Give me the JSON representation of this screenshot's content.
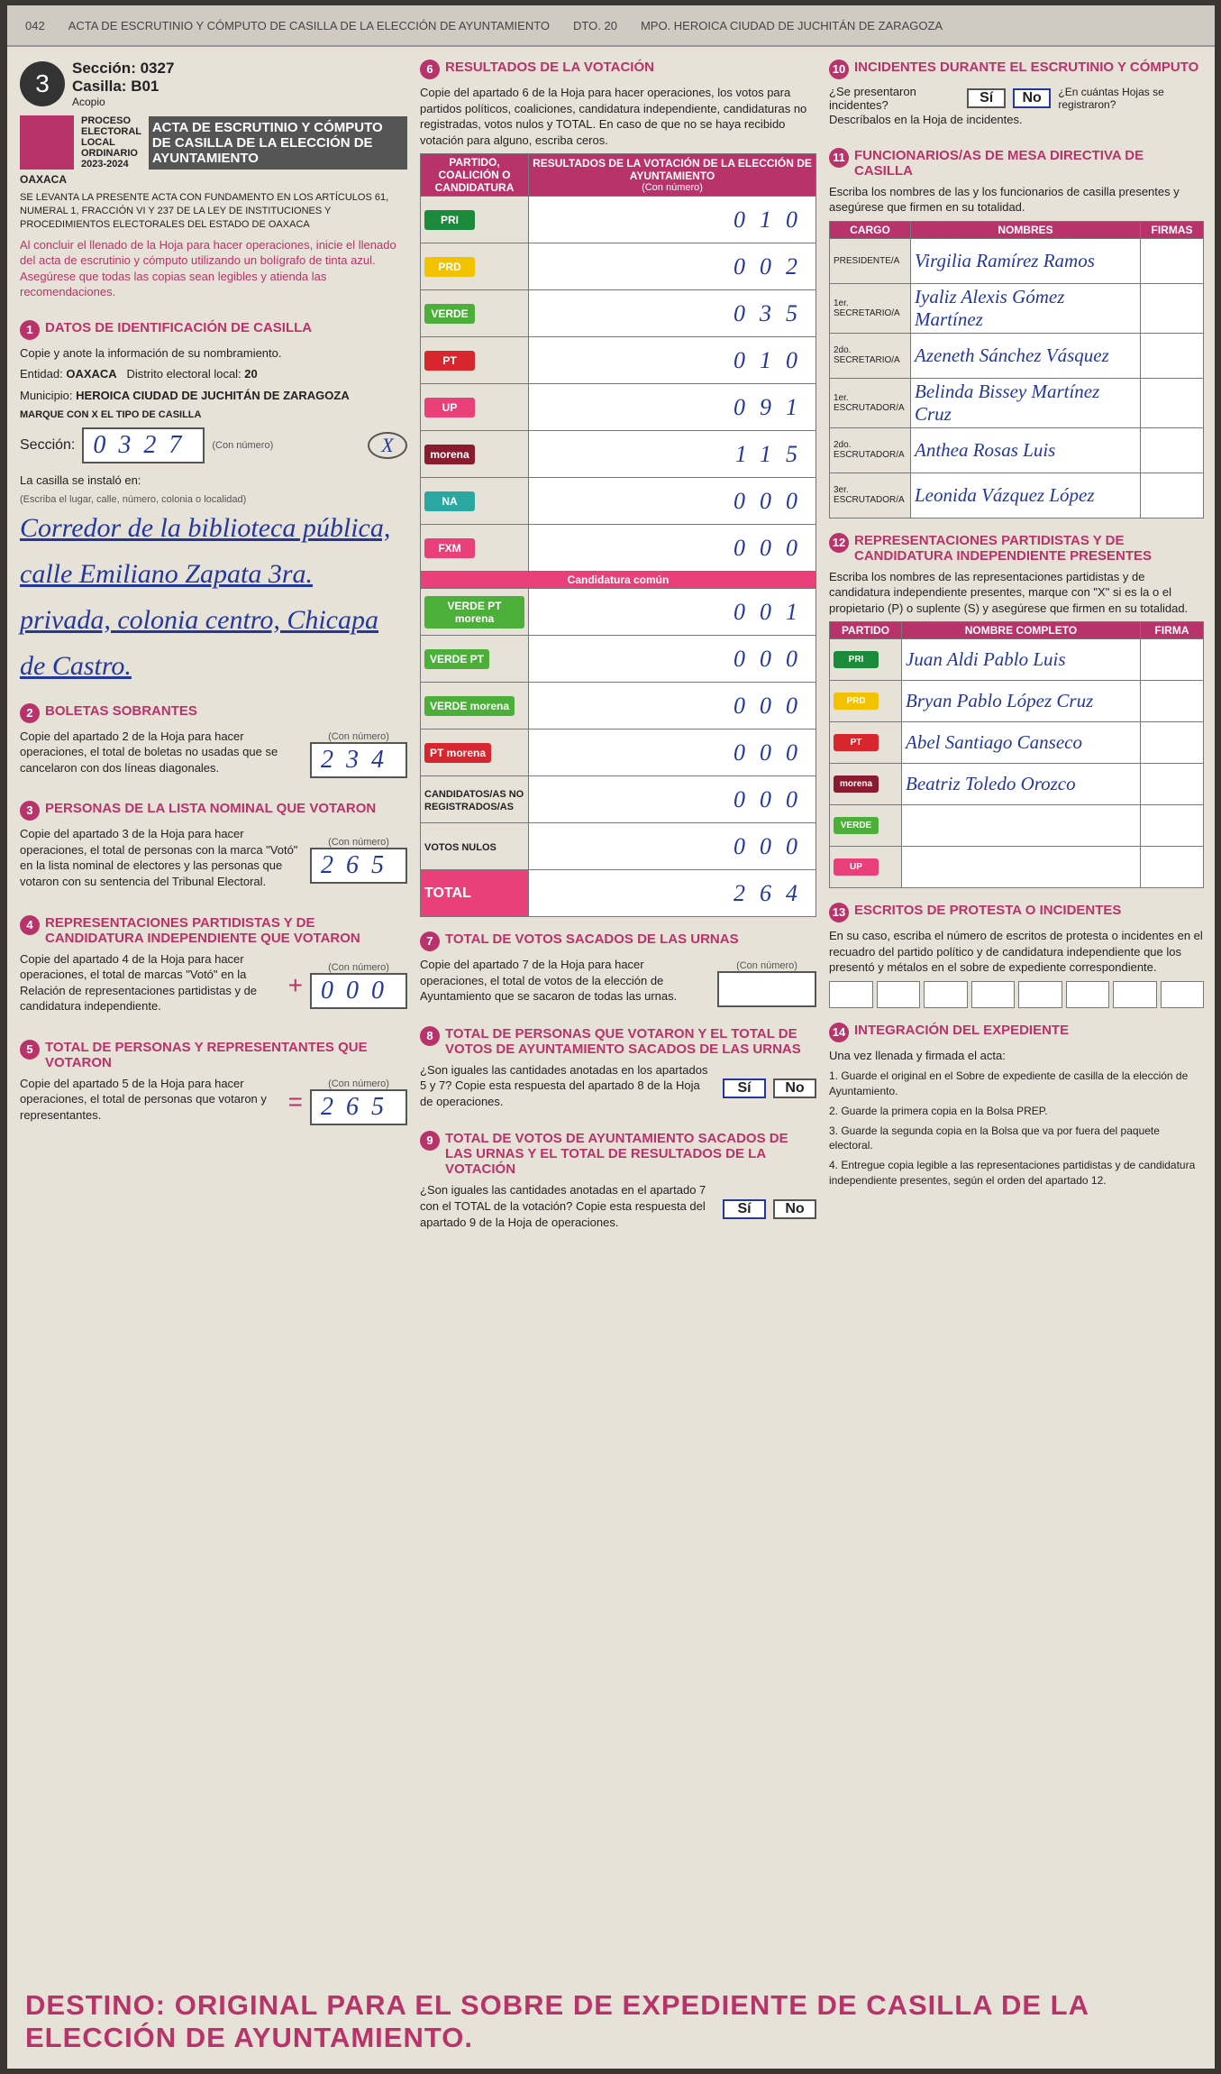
{
  "top_strip": {
    "code": "042",
    "acta": "ACTA DE ESCRUTINIO Y CÓMPUTO DE CASILLA DE LA ELECCIÓN DE AYUNTAMIENTO",
    "distrito": "DTO. 20",
    "municipio": "MPO. HEROICA CIUDAD DE JUCHITÁN DE ZARAGOZA"
  },
  "header": {
    "number": "3",
    "seccion": "Sección: 0327",
    "casilla": "Casilla: B01",
    "acopio": "Acopio",
    "proceso": "PROCESO ELECTORAL LOCAL ORDINARIO 2023-2024",
    "title": "ACTA DE ESCRUTINIO Y CÓMPUTO DE CASILLA DE LA ELECCIÓN DE AYUNTAMIENTO",
    "estado": "OAXACA",
    "fundamento": "SE LEVANTA LA PRESENTE ACTA CON FUNDAMENTO EN LOS ARTÍCULOS 61, NUMERAL 1, FRACCIÓN VI Y 237 DE LA LEY DE INSTITUCIONES Y PROCEDIMIENTOS ELECTORALES DEL ESTADO DE OAXACA",
    "instruccion": "Al concluir el llenado de la Hoja para hacer operaciones, inicie el llenado del acta de escrutinio y cómputo utilizando un bolígrafo de tinta azul. Asegúrese que todas las copias sean legibles y atienda las recomendaciones."
  },
  "s1": {
    "num": "1",
    "title": "DATOS DE IDENTIFICACIÓN DE CASILLA",
    "copy": "Copie y anote la información de su nombramiento.",
    "entidad_label": "Entidad:",
    "entidad": "OAXACA",
    "distrito_label": "Distrito electoral local:",
    "distrito": "20",
    "municipio_label": "Municipio:",
    "municipio": "HEROICA CIUDAD DE JUCHITÁN DE ZARAGOZA",
    "tipo": "MARQUE CON X EL TIPO DE CASILLA",
    "seccion_label": "Sección:",
    "seccion": "0327",
    "con_numero": "(Con número)",
    "instalo_label": "La casilla se instaló en:",
    "instalo_hint": "(Escriba el lugar, calle, número, colonia o localidad)",
    "instalo": "Corredor de la biblioteca pública, calle Emiliano Zapata 3ra. privada, colonia centro, Chicapa de Castro."
  },
  "s2": {
    "num": "2",
    "title": "BOLETAS SOBRANTES",
    "text": "Copie del apartado 2 de la Hoja para hacer operaciones, el total de boletas no usadas que se cancelaron con dos líneas diagonales.",
    "hint": "(Con número)",
    "value": "234"
  },
  "s3": {
    "num": "3",
    "title": "PERSONAS DE LA LISTA NOMINAL QUE VOTARON",
    "text": "Copie del apartado 3 de la Hoja para hacer operaciones, el total de personas con la marca \"Votó\" en la lista nominal de electores y las personas que votaron con su sentencia del Tribunal Electoral.",
    "hint": "(Con número)",
    "value": "265"
  },
  "s4": {
    "num": "4",
    "title": "REPRESENTACIONES PARTIDISTAS Y DE CANDIDATURA INDEPENDIENTE QUE VOTARON",
    "text": "Copie del apartado 4 de la Hoja para hacer operaciones, el total de marcas \"Votó\" en la Relación de representaciones partidistas y de candidatura independiente.",
    "sign": "+",
    "hint": "(Con número)",
    "value": "000"
  },
  "s5": {
    "num": "5",
    "title": "TOTAL DE PERSONAS Y REPRESENTANTES QUE VOTARON",
    "text": "Copie del apartado 5 de la Hoja para hacer operaciones, el total de personas que votaron y representantes.",
    "sign": "=",
    "hint": "(Con número)",
    "value": "265"
  },
  "s6": {
    "num": "6",
    "title": "RESULTADOS DE LA VOTACIÓN",
    "text": "Copie del apartado 6 de la Hoja para hacer operaciones, los votos para partidos políticos, coaliciones, candidatura independiente, candidaturas no registradas, votos nulos y TOTAL. En caso de que no se haya recibido votación para alguno, escriba ceros.",
    "col_party": "PARTIDO, COALICIÓN O CANDIDATURA",
    "col_results": "RESULTADOS DE LA VOTACIÓN DE LA ELECCIÓN DE AYUNTAMIENTO",
    "con_numero": "(Con número)",
    "rows": [
      {
        "logo": "PRI",
        "color": "#1b8a3a",
        "value": "010"
      },
      {
        "logo": "PRD",
        "color": "#f2c200",
        "value": "002"
      },
      {
        "logo": "VERDE",
        "color": "#4caf3a",
        "value": "035"
      },
      {
        "logo": "PT",
        "color": "#d7262e",
        "value": "010"
      },
      {
        "logo": "UP",
        "color": "#e9407a",
        "value": "091"
      },
      {
        "logo": "morena",
        "color": "#8a1b2e",
        "value": "115"
      },
      {
        "logo": "NA",
        "color": "#2aa7a0",
        "value": "000"
      },
      {
        "logo": "FXM",
        "color": "#e9407a",
        "value": "000"
      }
    ],
    "comun": "Candidatura común",
    "comun_rows": [
      {
        "logo": "VERDE PT morena",
        "color": "#4caf3a",
        "value": "001"
      },
      {
        "logo": "VERDE PT",
        "color": "#4caf3a",
        "value": "000"
      },
      {
        "logo": "VERDE morena",
        "color": "#4caf3a",
        "value": "000"
      },
      {
        "logo": "PT morena",
        "color": "#d7262e",
        "value": "000"
      }
    ],
    "no_registrados": "CANDIDATOS/AS NO REGISTRADOS/AS",
    "no_registrados_value": "000",
    "nulos": "VOTOS NULOS",
    "nulos_value": "000",
    "total_label": "TOTAL",
    "total": "264"
  },
  "s7": {
    "num": "7",
    "title": "TOTAL DE VOTOS SACADOS DE LAS URNAS",
    "text": "Copie del apartado 7 de la Hoja para hacer operaciones, el total de votos de la elección de Ayuntamiento que se sacaron de todas las urnas.",
    "hint": "(Con número)"
  },
  "s8": {
    "num": "8",
    "title": "TOTAL DE PERSONAS QUE VOTARON Y EL TOTAL DE VOTOS DE AYUNTAMIENTO SACADOS DE LAS URNAS",
    "text": "¿Son iguales las cantidades anotadas en los apartados 5 y 7? Copie esta respuesta del apartado 8 de la Hoja de operaciones.",
    "si": "Sí",
    "no": "No"
  },
  "s9": {
    "num": "9",
    "title": "TOTAL DE VOTOS DE AYUNTAMIENTO SACADOS DE LAS URNAS Y EL TOTAL DE RESULTADOS DE LA VOTACIÓN",
    "text": "¿Son iguales las cantidades anotadas en el apartado 7 con el TOTAL de la votación? Copie esta respuesta del apartado 9 de la Hoja de operaciones.",
    "si": "Sí",
    "no": "No"
  },
  "s10": {
    "num": "10",
    "title": "INCIDENTES DURANTE EL ESCRUTINIO Y CÓMPUTO",
    "q1": "¿Se presentaron incidentes?",
    "si": "Sí",
    "no": "No",
    "q2": "¿En cuántas Hojas se registraron?",
    "desc": "Descríbalos en la Hoja de incidentes."
  },
  "s11": {
    "num": "11",
    "title": "FUNCIONARIOS/AS DE MESA DIRECTIVA DE CASILLA",
    "text": "Escriba los nombres de las y los funcionarios de casilla presentes y asegúrese que firmen en su totalidad.",
    "col_cargo": "CARGO",
    "col_nombres": "NOMBRES",
    "col_firmas": "FIRMAS",
    "rows": [
      {
        "cargo": "PRESIDENTE/A",
        "nombre": "Virgilia Ramírez Ramos"
      },
      {
        "cargo": "1er. SECRETARIO/A",
        "nombre": "Iyaliz Alexis Gómez Martínez"
      },
      {
        "cargo": "2do. SECRETARIO/A",
        "nombre": "Azeneth Sánchez Vásquez"
      },
      {
        "cargo": "1er. ESCRUTADOR/A",
        "nombre": "Belinda Bissey Martínez Cruz"
      },
      {
        "cargo": "2do. ESCRUTADOR/A",
        "nombre": "Anthea Rosas Luis"
      },
      {
        "cargo": "3er. ESCRUTADOR/A",
        "nombre": "Leonida Vázquez López"
      }
    ]
  },
  "s12": {
    "num": "12",
    "title": "REPRESENTACIONES PARTIDISTAS Y DE CANDIDATURA INDEPENDIENTE PRESENTES",
    "text": "Escriba los nombres de las representaciones partidistas y de candidatura independiente presentes, marque con \"X\" si es la o el propietario (P) o suplente (S) y asegúrese que firmen en su totalidad.",
    "col_partido": "PARTIDO",
    "col_nombre": "NOMBRE COMPLETO",
    "col_firma": "FIRMA",
    "rows": [
      {
        "partido": "PRI",
        "color": "#1b8a3a",
        "nombre": "Juan Aldi Pablo Luis"
      },
      {
        "partido": "PRD",
        "color": "#f2c200",
        "nombre": "Bryan Pablo López Cruz"
      },
      {
        "partido": "PT",
        "color": "#d7262e",
        "nombre": "Abel Santiago Canseco"
      },
      {
        "partido": "morena",
        "color": "#8a1b2e",
        "nombre": "Beatriz Toledo Orozco"
      },
      {
        "partido": "VERDE",
        "color": "#4caf3a",
        "nombre": null
      },
      {
        "partido": "UP",
        "color": "#e9407a",
        "nombre": null
      }
    ]
  },
  "s13": {
    "num": "13",
    "title": "ESCRITOS DE PROTESTA O INCIDENTES",
    "text": "En su caso, escriba el número de escritos de protesta o incidentes en el recuadro del partido político y de candidatura independiente que los presentó y métalos en el sobre de expediente correspondiente."
  },
  "s14": {
    "num": "14",
    "title": "INTEGRACIÓN DEL EXPEDIENTE",
    "intro": "Una vez llenada y firmada el acta:",
    "steps": [
      "1. Guarde el original en el Sobre de expediente de casilla de la elección de Ayuntamiento.",
      "2. Guarde la primera copia en la Bolsa PREP.",
      "3. Guarde la segunda copia en la Bolsa que va por fuera del paquete electoral.",
      "4. Entregue copia legible a las representaciones partidistas y de candidatura independiente presentes, según el orden del apartado 12."
    ]
  },
  "destino": "DESTINO: ORIGINAL PARA EL SOBRE DE EXPEDIENTE DE CASILLA DE LA ELECCIÓN DE AYUNTAMIENTO."
}
